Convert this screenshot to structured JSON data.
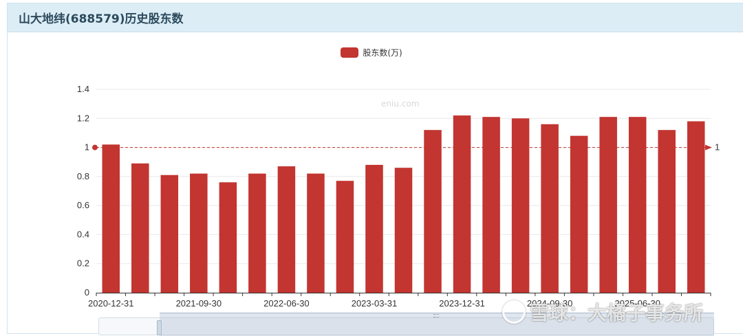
{
  "header": {
    "title": "山大地纬(688579)历史股东数"
  },
  "watermarks": {
    "site": "eniu.com",
    "brand": "雪球：大橘子事务所"
  },
  "colors": {
    "bar": "#c23531",
    "grid": "#e8e8e8",
    "axis": "#333333",
    "markline": "#c23531"
  },
  "chart_data": {
    "type": "bar",
    "title": "",
    "legend": {
      "position": "top-center",
      "entries": [
        "股东数(万)"
      ]
    },
    "series": [
      {
        "name": "股东数(万)",
        "values": [
          1.02,
          0.89,
          0.81,
          0.82,
          0.76,
          0.82,
          0.87,
          0.82,
          0.77,
          0.88,
          0.86,
          1.12,
          1.22,
          1.21,
          1.2,
          1.16,
          1.08,
          1.21,
          1.21,
          1.12,
          1.18
        ]
      }
    ],
    "categories": [
      "2020-12-31",
      "",
      "",
      "2021-09-30",
      "",
      "",
      "2022-06-30",
      "",
      "",
      "2023-03-31",
      "",
      "",
      "2023-12-31",
      "",
      "",
      "2024-09-30",
      "",
      "",
      "2025-06-30",
      "",
      ""
    ],
    "x_tick_labels": [
      "2020-12-31",
      "2021-09-30",
      "2022-06-30",
      "2023-03-31",
      "2023-12-31",
      "2024-09-30",
      "2025-06-30"
    ],
    "y_ticks": [
      "0",
      "0.2",
      "0.4",
      "0.6",
      "0.8",
      "1",
      "1.2",
      "1.4"
    ],
    "ylim": [
      0,
      1.4
    ],
    "grid": true,
    "markline": {
      "value": 1,
      "label": "1"
    },
    "xlabel": "",
    "ylabel": ""
  }
}
